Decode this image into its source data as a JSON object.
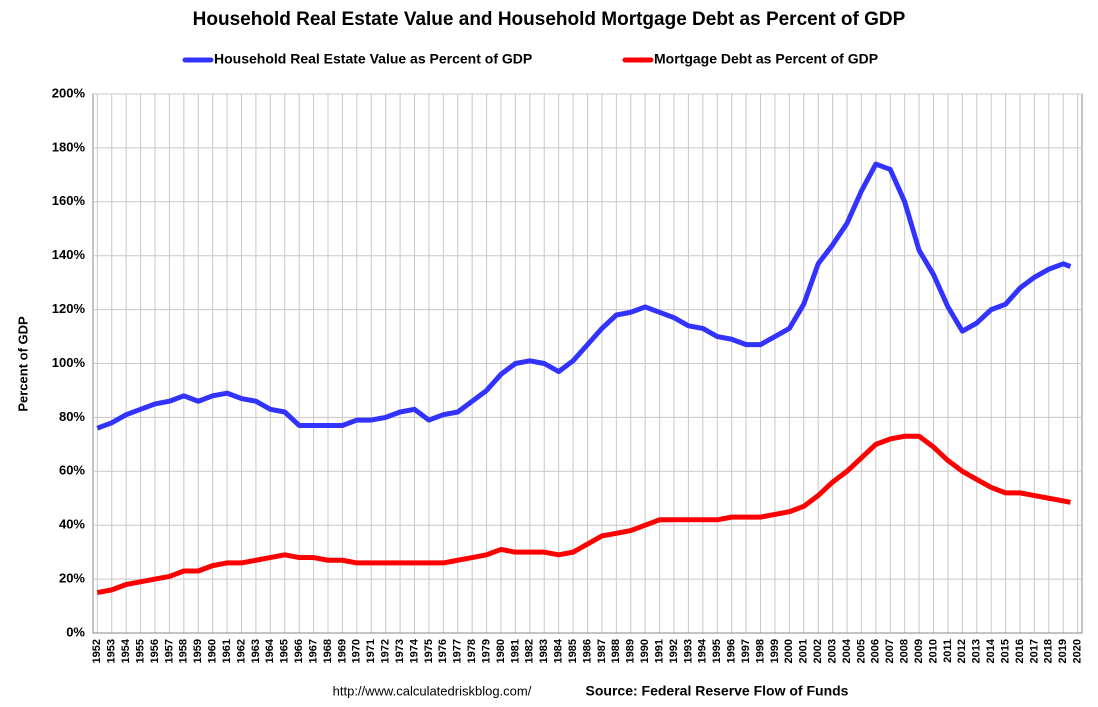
{
  "chart_data": {
    "type": "line",
    "title": "Household Real Estate Value and Household Mortgage Debt as Percent of GDP",
    "y_label": "Percent of GDP",
    "footer_url": "http://www.calculatedriskblog.com/",
    "footer_source": "Source: Federal Reserve Flow of Funds",
    "x": [
      1952,
      1953,
      1954,
      1955,
      1956,
      1957,
      1958,
      1959,
      1960,
      1961,
      1962,
      1963,
      1964,
      1965,
      1966,
      1967,
      1968,
      1969,
      1970,
      1971,
      1972,
      1973,
      1974,
      1975,
      1976,
      1977,
      1978,
      1979,
      1980,
      1981,
      1982,
      1983,
      1984,
      1985,
      1986,
      1987,
      1988,
      1989,
      1990,
      1991,
      1992,
      1993,
      1994,
      1995,
      1996,
      1997,
      1998,
      1999,
      2000,
      2001,
      2002,
      2003,
      2004,
      2005,
      2006,
      2007,
      2008,
      2009,
      2010,
      2011,
      2012,
      2013,
      2014,
      2015,
      2016,
      2017,
      2018,
      2019,
      2019.5
    ],
    "series": [
      {
        "name": "Household Real Estate Value as Percent of GDP",
        "color": "#3333ff",
        "values": [
          76,
          78,
          81,
          83,
          85,
          86,
          88,
          86,
          88,
          89,
          87,
          86,
          83,
          82,
          77,
          77,
          77,
          77,
          79,
          79,
          80,
          82,
          83,
          79,
          81,
          82,
          86,
          90,
          96,
          100,
          101,
          100,
          97,
          101,
          107,
          113,
          118,
          119,
          121,
          119,
          117,
          114,
          113,
          110,
          109,
          107,
          107,
          110,
          113,
          122,
          137,
          144,
          152,
          164,
          174,
          172,
          160,
          142,
          133,
          121,
          112,
          115,
          120,
          122,
          128,
          132,
          135,
          137,
          136
        ]
      },
      {
        "name": "Mortgage Debt as Percent of GDP",
        "color": "#ff0000",
        "values": [
          15,
          16,
          18,
          19,
          20,
          21,
          23,
          23,
          25,
          26,
          26,
          27,
          28,
          29,
          28,
          28,
          27,
          27,
          26,
          26,
          26,
          26,
          26,
          26,
          26,
          27,
          28,
          29,
          31,
          30,
          30,
          30,
          29,
          30,
          33,
          36,
          37,
          38,
          40,
          42,
          42,
          42,
          42,
          42,
          43,
          43,
          43,
          44,
          45,
          47,
          51,
          56,
          60,
          65,
          70,
          72,
          73,
          73,
          69,
          64,
          60,
          57,
          54,
          52,
          52,
          51,
          50,
          49,
          48.5
        ]
      }
    ],
    "xlim": [
      1951.7,
      2020.3
    ],
    "xticks": [
      1952,
      1953,
      1954,
      1955,
      1956,
      1957,
      1958,
      1959,
      1960,
      1961,
      1962,
      1963,
      1964,
      1965,
      1966,
      1967,
      1968,
      1969,
      1970,
      1971,
      1972,
      1973,
      1974,
      1975,
      1976,
      1977,
      1978,
      1979,
      1980,
      1981,
      1982,
      1983,
      1984,
      1985,
      1986,
      1987,
      1988,
      1989,
      1990,
      1991,
      1992,
      1993,
      1994,
      1995,
      1996,
      1997,
      1998,
      1999,
      2000,
      2001,
      2002,
      2003,
      2004,
      2005,
      2006,
      2007,
      2008,
      2009,
      2010,
      2011,
      2012,
      2013,
      2014,
      2015,
      2016,
      2017,
      2018,
      2019,
      2020
    ],
    "ylim": [
      0,
      200
    ],
    "yticks": [
      {
        "value": 0,
        "label": "0%"
      },
      {
        "value": 20,
        "label": "20%"
      },
      {
        "value": 40,
        "label": "40%"
      },
      {
        "value": 60,
        "label": "60%"
      },
      {
        "value": 80,
        "label": "80%"
      },
      {
        "value": 100,
        "label": "100%"
      },
      {
        "value": 120,
        "label": "120%"
      },
      {
        "value": 140,
        "label": "140%"
      },
      {
        "value": 160,
        "label": "160%"
      },
      {
        "value": 180,
        "label": "180%"
      },
      {
        "value": 200,
        "label": "200%"
      }
    ],
    "grid": true
  }
}
